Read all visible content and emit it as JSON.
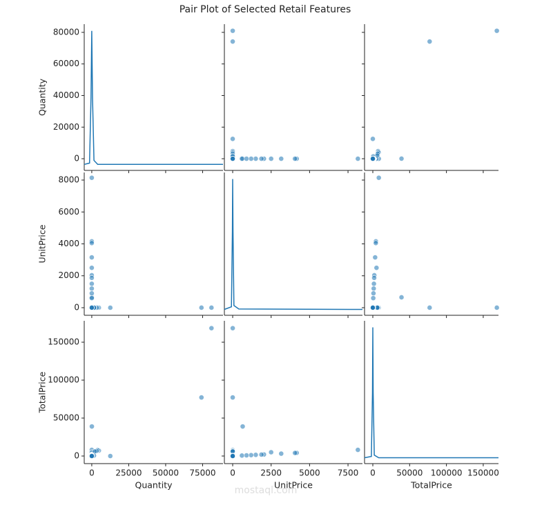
{
  "chart_data": {
    "type": "pairplot",
    "title": "Pair Plot of Selected Retail Features",
    "watermark": "mostaql.com",
    "color": "#1f77b4",
    "diag_ylim": [
      -0.045,
      1.05
    ],
    "variables": [
      {
        "name": "Quantity",
        "xlim": [
          -5100,
          88800
        ],
        "xticks": [
          0,
          25000,
          50000,
          75000
        ],
        "ylim": [
          -7400,
          85200
        ],
        "yticks": [
          0,
          20000,
          40000,
          60000,
          80000
        ],
        "values": [
          80995,
          74215,
          12540,
          60,
          1,
          1,
          1,
          1,
          2,
          1,
          1,
          4800,
          3900,
          3114,
          2000,
          1500,
          1,
          1,
          1,
          1,
          10,
          24,
          6,
          12
        ],
        "kde_x": [
          -5100,
          -1500,
          -500,
          0,
          500,
          1500,
          4000,
          88800
        ],
        "kde_density": [
          0,
          0.01,
          0.5,
          1,
          0.5,
          0.03,
          0,
          0
        ]
      },
      {
        "name": "UnitPrice",
        "xlim": [
          -540,
          8440
        ],
        "xticks": [
          0,
          2500,
          5000,
          7500
        ],
        "ylim": [
          -476,
          8476
        ],
        "yticks": [
          0,
          2000,
          4000,
          6000,
          8000
        ],
        "values": [
          2.08,
          1.04,
          0,
          649.5,
          8142,
          4161,
          4050,
          3155,
          2500,
          2033,
          1867,
          1.5,
          2,
          2.1,
          3,
          0.4,
          1500,
          1200,
          900,
          600,
          5,
          1.25,
          2.5,
          0.85
        ],
        "kde_x": [
          -540,
          -80,
          -20,
          0,
          20,
          80,
          400,
          8440
        ],
        "kde_density": [
          0,
          0.02,
          0.6,
          1,
          0.6,
          0.03,
          0.003,
          0
        ]
      },
      {
        "name": "TotalPrice",
        "xlim": [
          -11250,
          170700
        ],
        "xticks": [
          0,
          50000,
          100000,
          150000
        ],
        "ylim": [
          -10000,
          178200
        ],
        "yticks": [
          0,
          50000,
          100000,
          150000
        ],
        "values": [
          168470,
          77184,
          0,
          38970,
          8142,
          4161,
          4050,
          3155,
          5000,
          2033,
          1867,
          7200,
          7800,
          6539,
          6000,
          600,
          1500,
          1200,
          900,
          600,
          50,
          30,
          15,
          10
        ],
        "kde_x": [
          -11250,
          -2000,
          -500,
          0,
          500,
          2000,
          8000,
          170700
        ],
        "kde_density": [
          0,
          0.01,
          0.5,
          1,
          0.5,
          0.02,
          0,
          0
        ]
      }
    ]
  }
}
